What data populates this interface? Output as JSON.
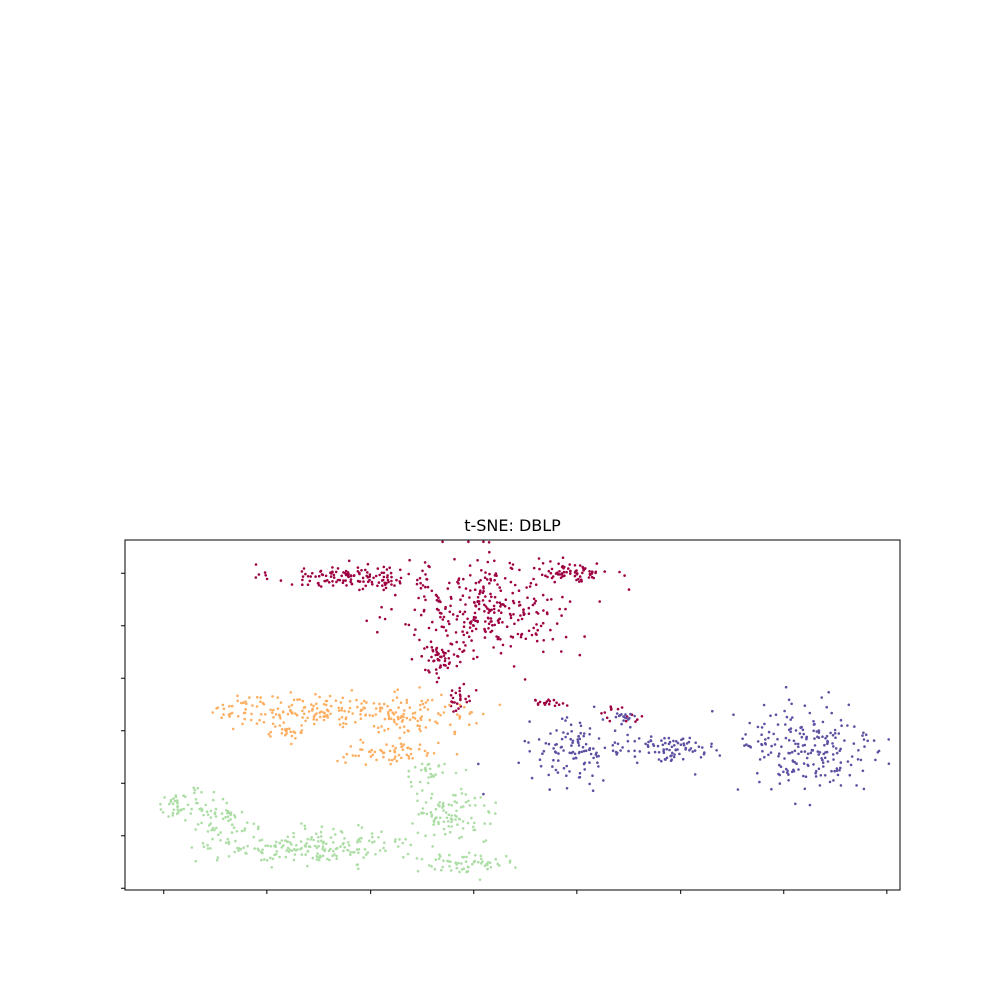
{
  "chart_data": {
    "type": "scatter",
    "title": "t-SNE: DBLP",
    "xlabel": "",
    "ylabel": "",
    "tick_labels_shown": false,
    "xlim": [
      0,
      100
    ],
    "ylim": [
      0,
      100
    ],
    "xticks": [
      5,
      18.3,
      31.7,
      45,
      58.3,
      71.7,
      85,
      98.3
    ],
    "yticks": [
      0.5,
      15.5,
      30.5,
      45.5,
      60.5,
      75.5,
      90.5
    ],
    "grid": false,
    "legend": "none",
    "series": [
      {
        "color": "#9e0142",
        "clusters": [
          {
            "cx": 29,
            "cy": 89.5,
            "sx": 5,
            "sy": 1.8,
            "n": 140
          },
          {
            "cx": 47,
            "cy": 80,
            "sx": 5.6,
            "sy": 7.5,
            "n": 320
          },
          {
            "cx": 58,
            "cy": 91,
            "sx": 2.2,
            "sy": 1.3,
            "n": 70
          },
          {
            "cx": 40.5,
            "cy": 66,
            "sx": 1.2,
            "sy": 2,
            "n": 45
          },
          {
            "cx": 43,
            "cy": 55,
            "sx": 0.8,
            "sy": 2,
            "n": 25
          },
          {
            "cx": 54.5,
            "cy": 53.5,
            "sx": 1.2,
            "sy": 0.5,
            "n": 18
          },
          {
            "cx": 63.5,
            "cy": 50.5,
            "sx": 1.5,
            "sy": 1.2,
            "n": 15
          }
        ]
      },
      {
        "color": "#fdae61",
        "clusters": [
          {
            "cx": 22,
            "cy": 51.5,
            "sx": 5.2,
            "sy": 2.2,
            "n": 130
          },
          {
            "cx": 36,
            "cy": 50,
            "sx": 5.5,
            "sy": 2.8,
            "n": 130
          },
          {
            "cx": 34.5,
            "cy": 39,
            "sx": 3.2,
            "sy": 1.6,
            "n": 60
          },
          {
            "cx": 21,
            "cy": 45.5,
            "sx": 1.2,
            "sy": 1.4,
            "n": 25
          }
        ]
      },
      {
        "color": "#abdda4",
        "clusters": [
          {
            "cx": 7.5,
            "cy": 24,
            "sx": 2,
            "sy": 2.2,
            "n": 55
          },
          {
            "cx": 13,
            "cy": 19,
            "sx": 2,
            "sy": 3,
            "n": 45
          },
          {
            "cx": 24,
            "cy": 12.5,
            "sx": 6,
            "sy": 2.5,
            "n": 190
          },
          {
            "cx": 42,
            "cy": 21,
            "sx": 3,
            "sy": 4,
            "n": 100
          },
          {
            "cx": 44,
            "cy": 7.5,
            "sx": 3.2,
            "sy": 1.5,
            "n": 60
          },
          {
            "cx": 39,
            "cy": 34,
            "sx": 1.5,
            "sy": 1.5,
            "n": 25
          }
        ]
      },
      {
        "color": "#5e4fa2",
        "clusters": [
          {
            "cx": 58,
            "cy": 40,
            "sx": 3,
            "sy": 4.5,
            "n": 110
          },
          {
            "cx": 70,
            "cy": 40.5,
            "sx": 4,
            "sy": 1.8,
            "n": 90
          },
          {
            "cx": 88,
            "cy": 40,
            "sx": 4.5,
            "sy": 7,
            "n": 210
          },
          {
            "cx": 64.5,
            "cy": 49,
            "sx": 0.8,
            "sy": 1.5,
            "n": 15
          }
        ]
      }
    ]
  }
}
